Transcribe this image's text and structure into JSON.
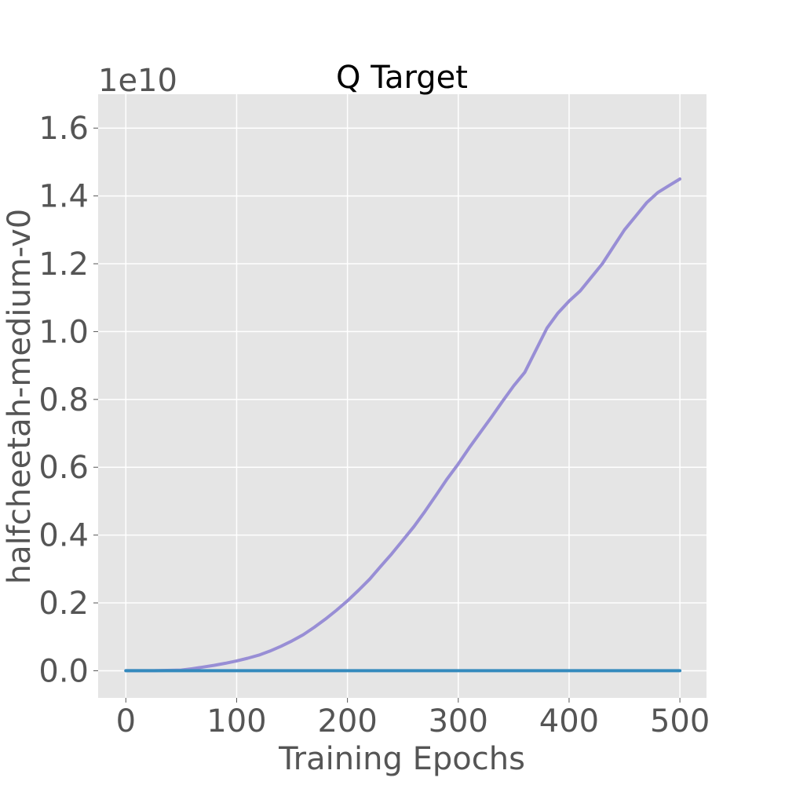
{
  "chart_data": {
    "type": "line",
    "title": "Q Target",
    "xlabel": "Training Epochs",
    "ylabel": "halfcheetah-medium-v0",
    "y_offset_label": "1e10",
    "y_scale": 10000000000,
    "xlim": [
      -25,
      524
    ],
    "ylim": [
      -0.08,
      1.7
    ],
    "x_ticks": [
      0,
      100,
      200,
      300,
      400,
      500
    ],
    "x_tick_labels": [
      "0",
      "100",
      "200",
      "300",
      "400",
      "500"
    ],
    "y_ticks": [
      0.0,
      0.2,
      0.4,
      0.6,
      0.8,
      1.0,
      1.2,
      1.4,
      1.6
    ],
    "y_tick_labels": [
      "0.0",
      "0.2",
      "0.4",
      "0.6",
      "0.8",
      "1.0",
      "1.2",
      "1.4",
      "1.6"
    ],
    "grid": true,
    "style": "ggplot",
    "colors": {
      "background": "#e5e5e5",
      "grid": "#ffffff"
    },
    "series": [
      {
        "color": "#988ed5",
        "x": [
          0,
          25,
          50,
          60,
          70,
          80,
          90,
          100,
          110,
          120,
          130,
          140,
          150,
          160,
          170,
          180,
          190,
          200,
          210,
          220,
          230,
          240,
          250,
          260,
          270,
          280,
          290,
          300,
          310,
          320,
          330,
          340,
          350,
          360,
          370,
          380,
          390,
          400,
          410,
          420,
          430,
          440,
          450,
          460,
          470,
          480,
          490,
          500
        ],
        "y": [
          0.0,
          0.0,
          0.002,
          0.006,
          0.011,
          0.016,
          0.022,
          0.029,
          0.037,
          0.046,
          0.058,
          0.072,
          0.088,
          0.106,
          0.128,
          0.152,
          0.178,
          0.206,
          0.237,
          0.27,
          0.308,
          0.345,
          0.385,
          0.425,
          0.47,
          0.518,
          0.566,
          0.61,
          0.658,
          0.703,
          0.748,
          0.795,
          0.84,
          0.88,
          0.945,
          1.01,
          1.055,
          1.09,
          1.12,
          1.16,
          1.2,
          1.25,
          1.3,
          1.34,
          1.38,
          1.41,
          1.43,
          1.45
        ]
      },
      {
        "color": "#348abd",
        "x": [
          0,
          500
        ],
        "y": [
          0.0,
          0.0
        ]
      }
    ]
  }
}
